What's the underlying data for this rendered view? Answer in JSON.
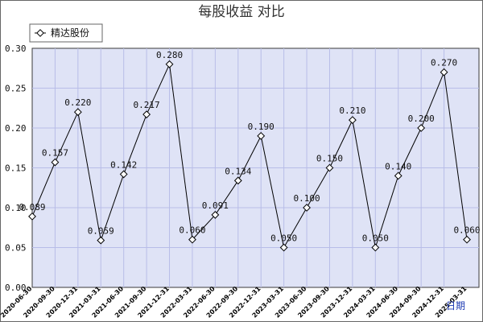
{
  "chart_data": {
    "type": "line",
    "title": "每股收益  对比",
    "xlabel": "日期",
    "ylabel": "",
    "ylim": [
      0,
      0.3
    ],
    "yticks": [
      "0.00",
      "0.05",
      "0.10",
      "0.15",
      "0.20",
      "0.25",
      "0.30"
    ],
    "grid": true,
    "legend_position": "top-left",
    "categories": [
      "2020-06-30",
      "2020-09-30",
      "2020-12-31",
      "2021-03-31",
      "2021-06-30",
      "2021-09-30",
      "2021-12-31",
      "2022-03-31",
      "2022-06-30",
      "2022-09-30",
      "2022-12-31",
      "2023-03-31",
      "2023-06-30",
      "2023-09-30",
      "2023-12-31",
      "2024-03-31",
      "2024-06-30",
      "2024-09-30",
      "2024-12-31",
      "2025-03-31"
    ],
    "series": [
      {
        "name": "精达股份",
        "values": [
          0.089,
          0.157,
          0.22,
          0.059,
          0.142,
          0.217,
          0.28,
          0.06,
          0.091,
          0.134,
          0.19,
          0.05,
          0.1,
          0.15,
          0.21,
          0.05,
          0.14,
          0.2,
          0.27,
          0.06
        ],
        "labels": [
          "0.089",
          "0.157",
          "0.220",
          "0.059",
          "0.142",
          "0.217",
          "0.280",
          "0.060",
          "0.091",
          "0.134",
          "0.190",
          "0.050",
          "0.100",
          "0.150",
          "0.210",
          "0.050",
          "0.140",
          "0.200",
          "0.270",
          "0.060"
        ]
      }
    ],
    "colors": {
      "plot_background": "#dfe3f6",
      "plot_border": "#3a3a3a",
      "grid": "#b8bde8",
      "line": "#000000",
      "marker_fill": "#ffffff",
      "marker_stroke": "#000000",
      "page_background": "#ffffff",
      "axis_title": "#1f3bb3"
    }
  }
}
